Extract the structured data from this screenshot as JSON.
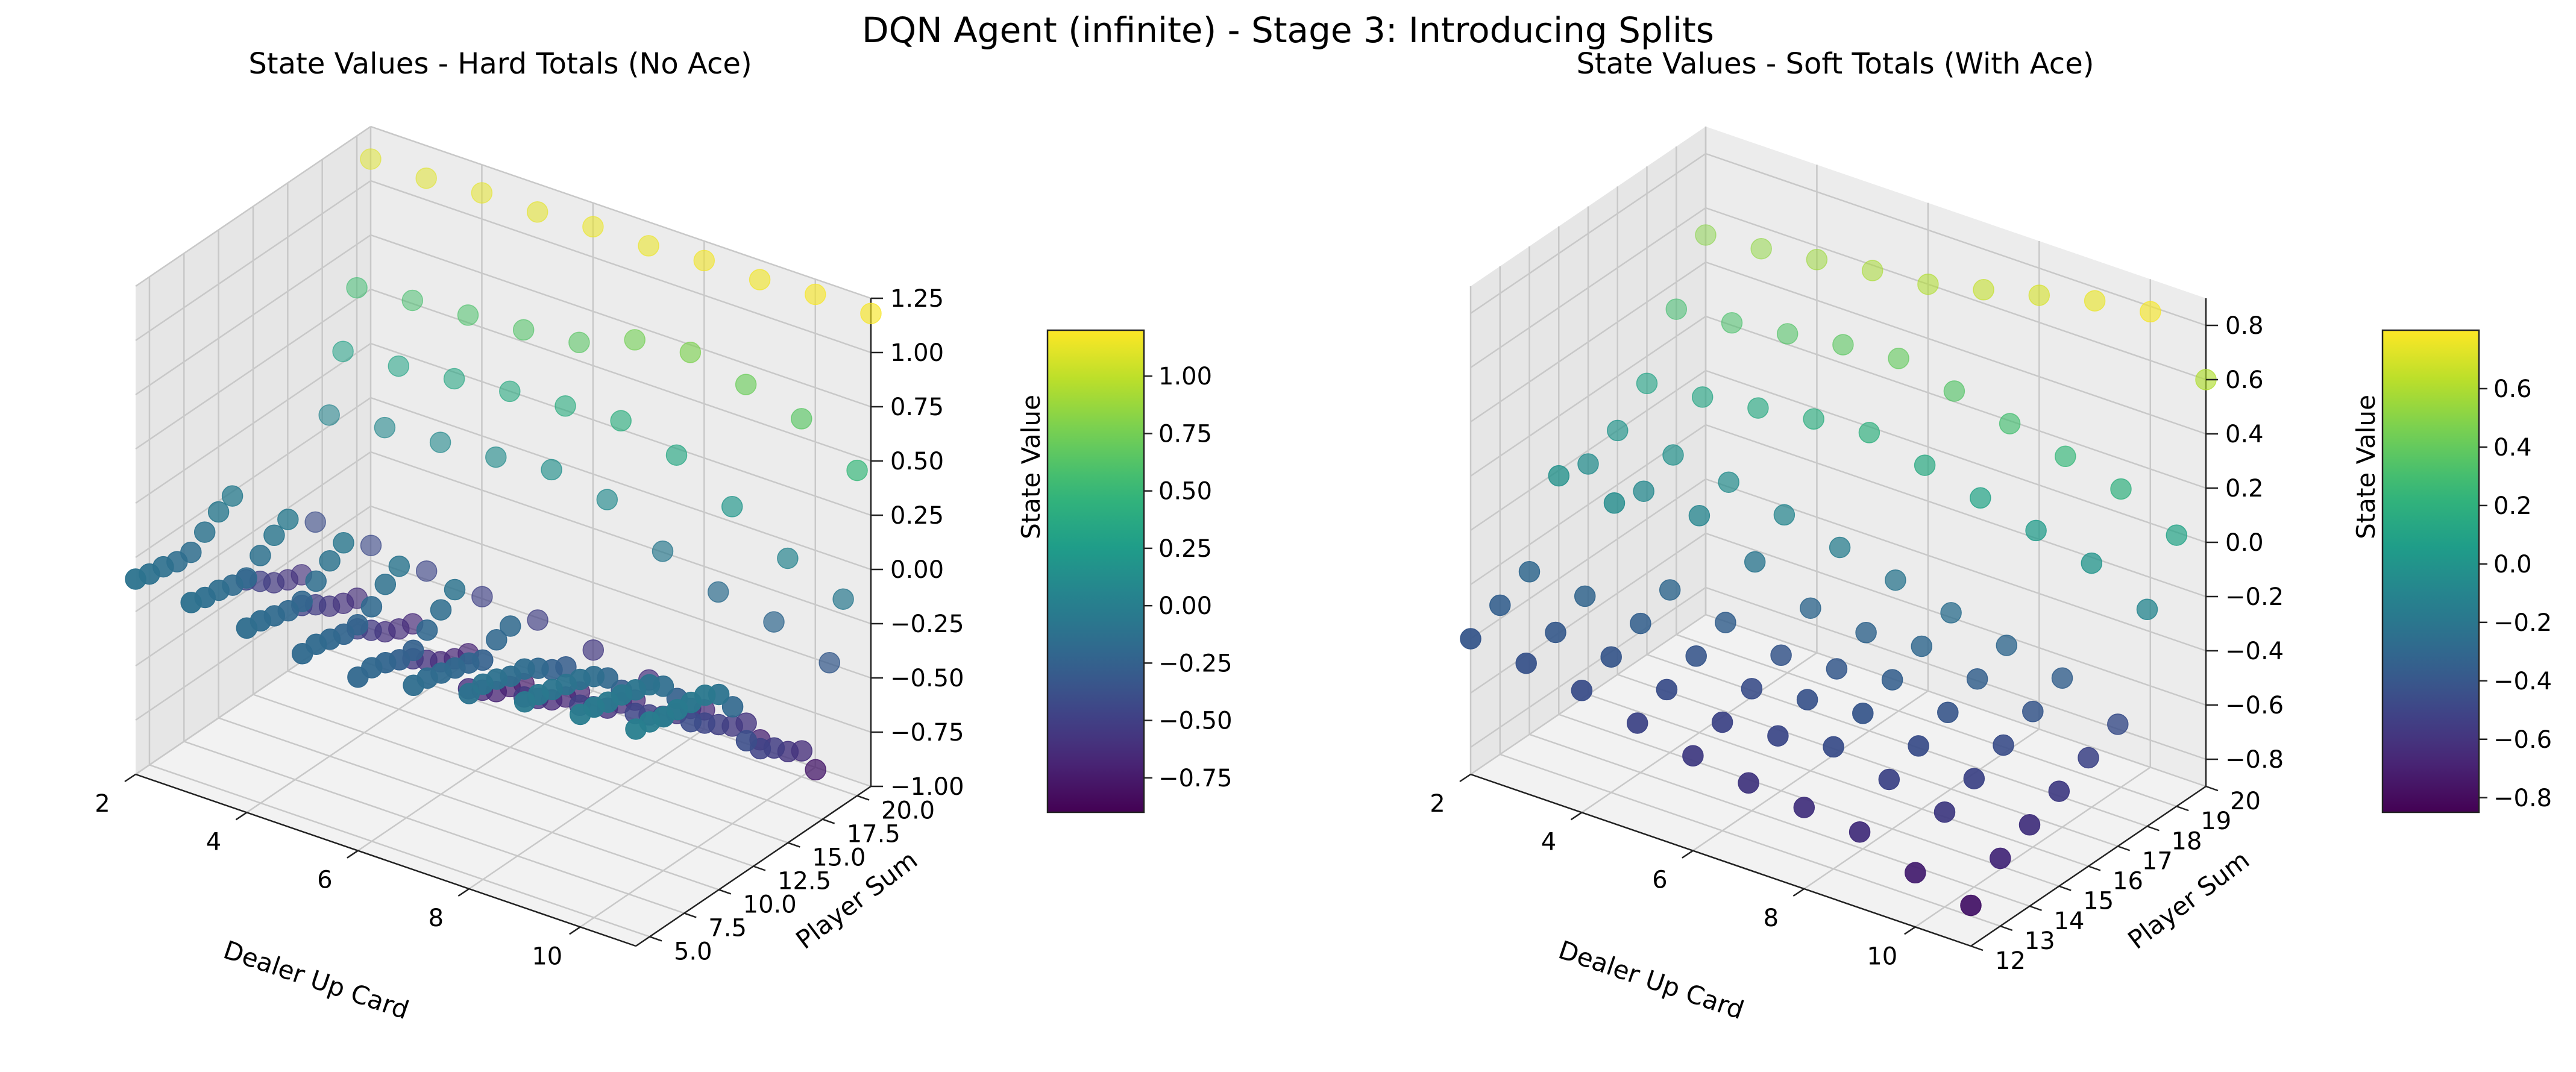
{
  "figure": {
    "title": "DQN Agent (infinite) - Stage 3: Introducing Splits"
  },
  "colormap": [
    "#440154",
    "#482878",
    "#3e4989",
    "#31688e",
    "#26828e",
    "#1f9e89",
    "#35b779",
    "#6ece58",
    "#b5de2b",
    "#fde725"
  ],
  "chart_data": [
    {
      "type": "scatter3d",
      "title": "State Values - Hard Totals (No Ace)",
      "xlabel": "Dealer Up Card",
      "ylabel": "Player Sum",
      "zlabel": "State Value",
      "xlim": [
        2,
        11
      ],
      "ylim": [
        4,
        21
      ],
      "zlim": [
        -1.0,
        1.25
      ],
      "xticks": [
        "2",
        "4",
        "6",
        "8",
        "10"
      ],
      "xtick_values": [
        2,
        4,
        6,
        8,
        10
      ],
      "yticks": [
        "5.0",
        "7.5",
        "10.0",
        "12.5",
        "15.0",
        "17.5",
        "20.0"
      ],
      "ytick_values": [
        5,
        7.5,
        10,
        12.5,
        15,
        17.5,
        20
      ],
      "zticks": [
        "−1.00",
        "−0.75",
        "−0.50",
        "−0.25",
        "0.00",
        "0.25",
        "0.50",
        "0.75",
        "1.00",
        "1.25"
      ],
      "ztick_values": [
        -1.0,
        -0.75,
        -0.5,
        -0.25,
        0.0,
        0.25,
        0.5,
        0.75,
        1.0,
        1.25
      ],
      "colorbar": {
        "label": "State Value",
        "range": [
          -0.9,
          1.2
        ],
        "ticks": [
          "−0.75",
          "−0.50",
          "−0.25",
          "0.00",
          "0.25",
          "0.50",
          "0.75",
          "1.00"
        ],
        "tick_values": [
          -0.75,
          -0.5,
          -0.25,
          0.0,
          0.25,
          0.5,
          0.75,
          1.0
        ]
      },
      "dealer_cards": [
        2,
        3,
        4,
        5,
        6,
        7,
        8,
        9,
        10,
        11
      ],
      "player_sums": [
        4,
        5,
        6,
        7,
        8,
        9,
        10,
        11,
        12,
        13,
        14,
        15,
        16,
        17,
        18,
        19,
        20,
        21
      ],
      "values": [
        [
          -0.1,
          -0.12,
          -0.15,
          -0.18,
          -0.2,
          -0.15,
          -0.1,
          -0.05,
          -0.02,
          0.0
        ],
        [
          -0.12,
          -0.14,
          -0.16,
          -0.18,
          -0.2,
          -0.16,
          -0.1,
          -0.06,
          -0.03,
          -0.01
        ],
        [
          -0.13,
          -0.15,
          -0.18,
          -0.2,
          -0.22,
          -0.18,
          -0.12,
          -0.08,
          -0.05,
          -0.03
        ],
        [
          -0.15,
          -0.17,
          -0.2,
          -0.22,
          -0.25,
          -0.2,
          -0.15,
          -0.1,
          -0.06,
          -0.04
        ],
        [
          -0.15,
          -0.18,
          -0.2,
          -0.22,
          -0.25,
          -0.22,
          -0.16,
          -0.12,
          -0.08,
          -0.05
        ],
        [
          -0.1,
          -0.12,
          -0.15,
          -0.18,
          -0.2,
          -0.25,
          -0.2,
          -0.15,
          -0.1,
          -0.06
        ],
        [
          -0.05,
          -0.07,
          -0.1,
          -0.12,
          -0.15,
          -0.2,
          -0.25,
          -0.2,
          -0.15,
          -0.1
        ],
        [
          -0.02,
          -0.04,
          -0.06,
          -0.08,
          -0.1,
          -0.18,
          -0.28,
          -0.3,
          -0.25,
          -0.2
        ],
        [
          -0.45,
          -0.48,
          -0.5,
          -0.55,
          -0.6,
          -0.55,
          -0.5,
          -0.45,
          -0.4,
          -0.4
        ],
        [
          -0.5,
          -0.52,
          -0.55,
          -0.6,
          -0.65,
          -0.6,
          -0.55,
          -0.5,
          -0.45,
          -0.48
        ],
        [
          -0.55,
          -0.57,
          -0.6,
          -0.65,
          -0.7,
          -0.65,
          -0.6,
          -0.55,
          -0.5,
          -0.52
        ],
        [
          -0.58,
          -0.6,
          -0.63,
          -0.68,
          -0.72,
          -0.68,
          -0.62,
          -0.58,
          -0.55,
          -0.58
        ],
        [
          -0.6,
          -0.62,
          -0.65,
          -0.7,
          -0.75,
          -0.7,
          -0.65,
          -0.6,
          -0.58,
          -0.62
        ],
        [
          -0.4,
          -0.42,
          -0.45,
          -0.48,
          -0.5,
          -0.55,
          -0.6,
          -0.65,
          -0.7,
          -0.75
        ],
        [
          0.05,
          0.08,
          0.1,
          0.12,
          0.15,
          0.1,
          -0.05,
          -0.15,
          -0.2,
          -0.3
        ],
        [
          0.3,
          0.32,
          0.35,
          0.38,
          0.4,
          0.42,
          0.35,
          0.2,
          0.05,
          -0.05
        ],
        [
          0.55,
          0.58,
          0.6,
          0.62,
          0.65,
          0.75,
          0.78,
          0.72,
          0.65,
          0.5
        ],
        [
          1.1,
          1.1,
          1.12,
          1.12,
          1.14,
          1.14,
          1.16,
          1.16,
          1.18,
          1.18
        ]
      ]
    },
    {
      "type": "scatter3d",
      "title": "State Values - Soft Totals (With Ace)",
      "xlabel": "Dealer Up Card",
      "ylabel": "Player Sum",
      "zlabel": "State Value",
      "xlim": [
        2,
        11
      ],
      "ylim": [
        12,
        20
      ],
      "zlim": [
        -0.9,
        0.9
      ],
      "xticks": [
        "2",
        "4",
        "6",
        "8",
        "10"
      ],
      "xtick_values": [
        2,
        4,
        6,
        8,
        10
      ],
      "yticks": [
        "12",
        "13",
        "14",
        "15",
        "16",
        "17",
        "18",
        "19",
        "20"
      ],
      "ytick_values": [
        12,
        13,
        14,
        15,
        16,
        17,
        18,
        19,
        20
      ],
      "zticks": [
        "−0.8",
        "−0.6",
        "−0.4",
        "−0.2",
        "0.0",
        "0.2",
        "0.4",
        "0.6",
        "0.8"
      ],
      "ztick_values": [
        -0.8,
        -0.6,
        -0.4,
        -0.2,
        0.0,
        0.2,
        0.4,
        0.6,
        0.8
      ],
      "colorbar": {
        "label": "State Value",
        "range": [
          -0.85,
          0.8
        ],
        "ticks": [
          "−0.8",
          "−0.6",
          "−0.4",
          "−0.2",
          "0.0",
          "0.2",
          "0.4",
          "0.6"
        ],
        "tick_values": [
          -0.8,
          -0.6,
          -0.4,
          -0.2,
          0.0,
          0.2,
          0.4,
          0.6
        ]
      },
      "dealer_cards": [
        2,
        3,
        4,
        5,
        6,
        7,
        8,
        9,
        10,
        11
      ],
      "player_sums": [
        12,
        13,
        14,
        15,
        16,
        17,
        18,
        19,
        20
      ],
      "values": [
        [
          -0.4,
          -0.42,
          -0.45,
          -0.5,
          -0.55,
          -0.58,
          -0.6,
          -0.62,
          -0.7,
          -0.75
        ],
        [
          -0.35,
          -0.38,
          -0.4,
          -0.45,
          -0.5,
          -0.48,
          -0.45,
          -0.5,
          -0.55,
          -0.65
        ],
        [
          -0.3,
          -0.32,
          -0.35,
          -0.4,
          -0.45,
          -0.42,
          -0.4,
          -0.45,
          -0.5,
          -0.6
        ],
        [
          -0.02,
          -0.05,
          -0.3,
          -0.35,
          -0.4,
          -0.38,
          -0.35,
          -0.4,
          -0.45,
          -0.55
        ],
        [
          -0.05,
          -0.08,
          -0.1,
          -0.2,
          -0.3,
          -0.32,
          -0.3,
          -0.35,
          -0.4,
          -0.5
        ],
        [
          0.0,
          -0.02,
          -0.05,
          -0.1,
          -0.15,
          -0.2,
          -0.25,
          -0.3,
          -0.35,
          -0.45
        ],
        [
          0.1,
          0.12,
          0.15,
          0.18,
          0.2,
          0.15,
          0.1,
          0.05,
          0.0,
          -0.1
        ],
        [
          0.3,
          0.32,
          0.35,
          0.38,
          0.4,
          0.35,
          0.3,
          0.25,
          0.2,
          0.1
        ],
        [
          0.5,
          0.52,
          0.55,
          0.58,
          0.6,
          0.65,
          0.7,
          0.75,
          0.78,
          0.6
        ]
      ]
    }
  ]
}
